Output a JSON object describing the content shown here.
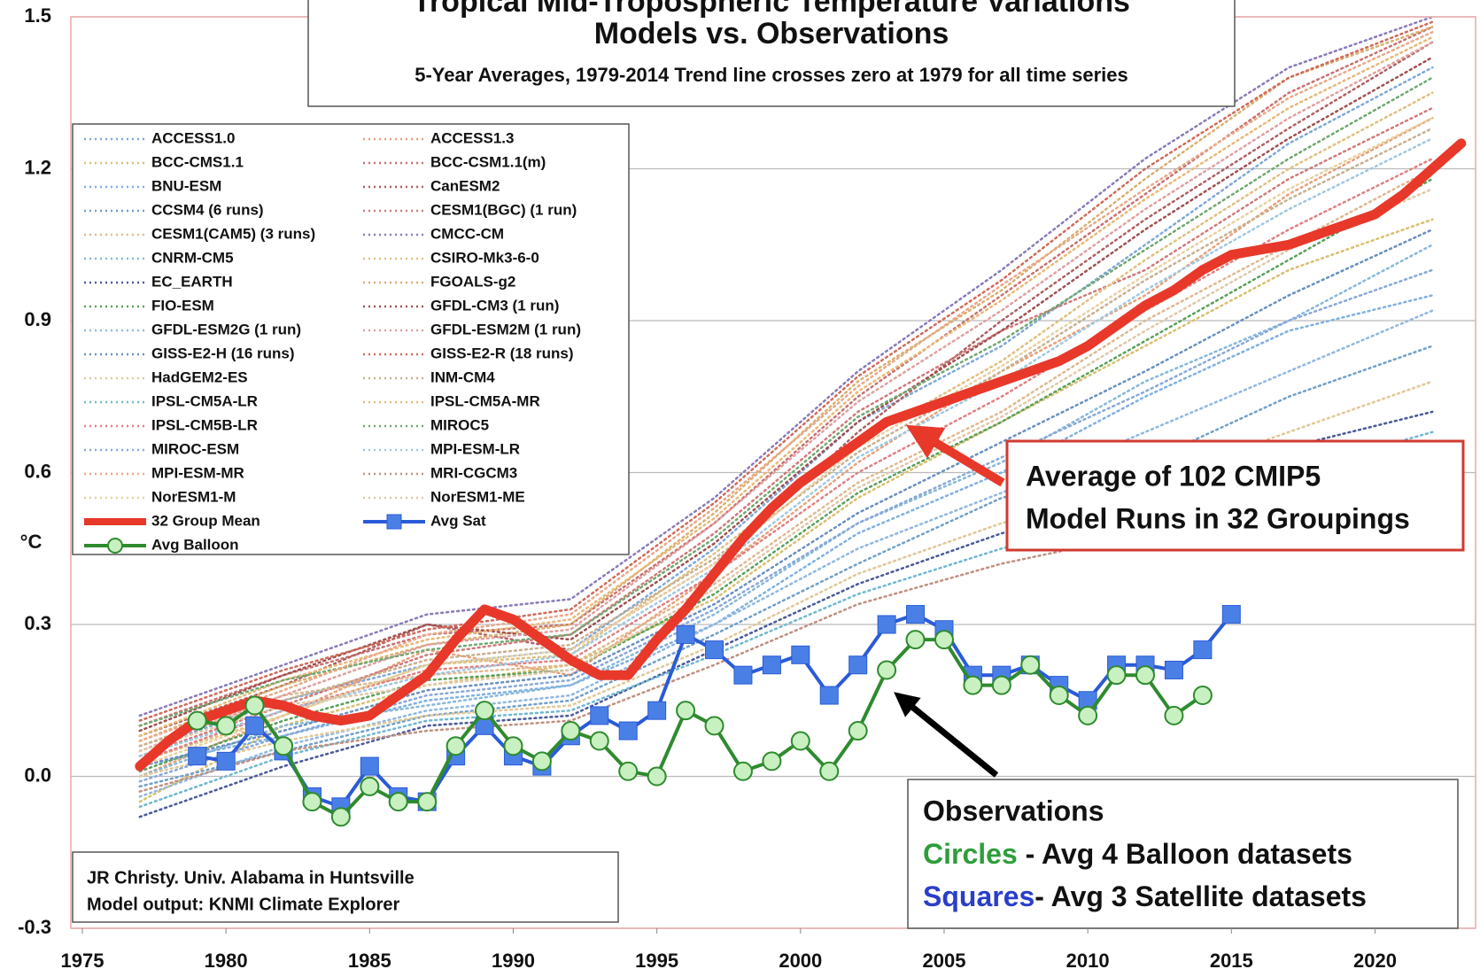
{
  "chart_data": {
    "type": "line",
    "title": "Tropical Mid-Tropospheric Temperature Variations",
    "subtitle": "Models vs. Observations",
    "note": "5-Year Averages, 1979-2014 Trend line crosses zero at 1979 for all time series",
    "y_label": "°C",
    "xlim": [
      1974.6,
      2023.5
    ],
    "ylim": [
      -0.3,
      1.5
    ],
    "xticks": [
      1975,
      1980,
      1985,
      1990,
      1995,
      2000,
      2005,
      2010,
      2015,
      2020
    ],
    "yticks": [
      -0.3,
      {
        "value": 0,
        "label": "0.0"
      },
      0.3,
      0.6,
      0.9,
      1.2,
      1.5
    ],
    "grid": true,
    "x": [
      1977,
      1978,
      1979,
      1980,
      1981,
      1982,
      1983,
      1984,
      1985,
      1986,
      1987,
      1988,
      1989,
      1990,
      1991,
      1992,
      1993,
      1994,
      1995,
      1996,
      1997,
      1998,
      1999,
      2000,
      2001,
      2002,
      2003,
      2004,
      2005,
      2006,
      2007,
      2008,
      2009,
      2010,
      2011,
      2012,
      2013,
      2014,
      2015,
      2016,
      2017,
      2018,
      2019,
      2020,
      2021,
      2022,
      2023
    ],
    "series": [
      {
        "name": "ACCESS1.0",
        "color": "#7fa8d8",
        "x": [
          1977,
          1982,
          1987,
          1992,
          1997,
          2002,
          2007,
          2012,
          2017,
          2022
        ],
        "values": [
          0.05,
          0.15,
          0.22,
          0.25,
          0.45,
          0.7,
          0.85,
          1.05,
          1.25,
          1.4
        ]
      },
      {
        "name": "ACCESS1.3",
        "color": "#e8a07a",
        "x": [
          1977,
          1982,
          1987,
          1992,
          1997,
          2002,
          2007,
          2012,
          2017,
          2022
        ],
        "values": [
          0.0,
          0.12,
          0.25,
          0.2,
          0.4,
          0.62,
          0.8,
          0.95,
          1.15,
          1.3
        ]
      },
      {
        "name": "BCC-CMS1.1",
        "color": "#d8c070",
        "x": [
          1977,
          1982,
          1987,
          1992,
          1997,
          2002,
          2007,
          2012,
          2017,
          2022
        ],
        "values": [
          -0.05,
          0.1,
          0.18,
          0.22,
          0.35,
          0.55,
          0.7,
          0.85,
          1.0,
          1.1
        ]
      },
      {
        "name": "BCC-CSM1.1(m)",
        "color": "#c87070",
        "x": [
          1977,
          1982,
          1987,
          1992,
          1997,
          2002,
          2007,
          2012,
          2017,
          2022
        ],
        "values": [
          0.1,
          0.2,
          0.28,
          0.3,
          0.5,
          0.75,
          0.95,
          1.15,
          1.35,
          1.48
        ]
      },
      {
        "name": "BNU-ESM",
        "color": "#80b0e0",
        "x": [
          1977,
          1982,
          1987,
          1992,
          1997,
          2002,
          2007,
          2012,
          2017,
          2022
        ],
        "values": [
          0.02,
          0.08,
          0.15,
          0.18,
          0.3,
          0.48,
          0.6,
          0.75,
          0.88,
          0.95
        ]
      },
      {
        "name": "CanESM2",
        "color": "#b06060",
        "x": [
          1977,
          1982,
          1987,
          1992,
          1997,
          2002,
          2007,
          2012,
          2017,
          2022
        ],
        "values": [
          0.08,
          0.18,
          0.3,
          0.25,
          0.42,
          0.68,
          0.9,
          1.1,
          1.28,
          1.45
        ]
      },
      {
        "name": "CCSM4 (6 runs)",
        "color": "#70a0c8",
        "x": [
          1977,
          1982,
          1987,
          1992,
          1997,
          2002,
          2007,
          2012,
          2017,
          2022
        ],
        "values": [
          -0.02,
          0.05,
          0.12,
          0.15,
          0.28,
          0.42,
          0.55,
          0.62,
          0.75,
          0.85
        ]
      },
      {
        "name": "CESM1(BGC) (1 run)",
        "color": "#d07a7a",
        "x": [
          1977,
          1982,
          1987,
          1992,
          1997,
          2002,
          2007,
          2012,
          2017,
          2022
        ],
        "values": [
          0.04,
          0.14,
          0.24,
          0.28,
          0.48,
          0.72,
          0.88,
          1.0,
          1.18,
          1.32
        ]
      },
      {
        "name": "CESM1(CAM5) (3 runs)",
        "color": "#e0b890",
        "x": [
          1977,
          1982,
          1987,
          1992,
          1997,
          2002,
          2007,
          2012,
          2017,
          2022
        ],
        "values": [
          0.06,
          0.16,
          0.2,
          0.22,
          0.38,
          0.58,
          0.72,
          0.9,
          1.05,
          1.2
        ]
      },
      {
        "name": "CMCC-CM",
        "color": "#8a7ab8",
        "x": [
          1977,
          1982,
          1987,
          1992,
          1997,
          2002,
          2007,
          2012,
          2017,
          2022
        ],
        "values": [
          0.12,
          0.22,
          0.32,
          0.35,
          0.55,
          0.8,
          1.0,
          1.22,
          1.4,
          1.5
        ]
      },
      {
        "name": "CNRM-CM5",
        "color": "#88b8d8",
        "x": [
          1977,
          1982,
          1987,
          1992,
          1997,
          2002,
          2007,
          2012,
          2017,
          2022
        ],
        "values": [
          0.0,
          0.1,
          0.14,
          0.18,
          0.32,
          0.5,
          0.62,
          0.78,
          0.9,
          1.05
        ]
      },
      {
        "name": "CSIRO-Mk3-6-0",
        "color": "#e0c080",
        "x": [
          1977,
          1982,
          1987,
          1992,
          1997,
          2002,
          2007,
          2012,
          2017,
          2022
        ],
        "values": [
          0.03,
          0.12,
          0.22,
          0.24,
          0.44,
          0.66,
          0.82,
          1.02,
          1.2,
          1.35
        ]
      },
      {
        "name": "EC_EARTH",
        "color": "#4a5a98",
        "x": [
          1977,
          1982,
          1987,
          1992,
          1997,
          2002,
          2007,
          2012,
          2017,
          2022
        ],
        "values": [
          -0.08,
          0.02,
          0.1,
          0.12,
          0.25,
          0.38,
          0.48,
          0.55,
          0.65,
          0.72
        ]
      },
      {
        "name": "FGOALS-g2",
        "color": "#d8b070",
        "x": [
          1977,
          1982,
          1987,
          1992,
          1997,
          2002,
          2007,
          2012,
          2017,
          2022
        ],
        "values": [
          0.07,
          0.18,
          0.26,
          0.3,
          0.52,
          0.78,
          0.96,
          1.18,
          1.38,
          1.48
        ]
      },
      {
        "name": "FIO-ESM",
        "color": "#5aa05a",
        "x": [
          1977,
          1982,
          1987,
          1992,
          1997,
          2002,
          2007,
          2012,
          2017,
          2022
        ],
        "values": [
          0.01,
          0.11,
          0.19,
          0.21,
          0.36,
          0.56,
          0.7,
          0.86,
          1.02,
          1.18
        ]
      },
      {
        "name": "GFDL-CM3 (1 run)",
        "color": "#a05050",
        "x": [
          1977,
          1982,
          1987,
          1992,
          1997,
          2002,
          2007,
          2012,
          2017,
          2022
        ],
        "values": [
          0.09,
          0.2,
          0.3,
          0.27,
          0.46,
          0.7,
          0.88,
          1.08,
          1.26,
          1.42
        ]
      },
      {
        "name": "GFDL-ESM2G (1 run)",
        "color": "#90b8e0",
        "x": [
          1977,
          1982,
          1987,
          1992,
          1997,
          2002,
          2007,
          2012,
          2017,
          2022
        ],
        "values": [
          -0.04,
          0.06,
          0.13,
          0.16,
          0.3,
          0.45,
          0.56,
          0.68,
          0.8,
          0.92
        ]
      },
      {
        "name": "GFDL-ESM2M (1 run)",
        "color": "#e0a0a0",
        "x": [
          1977,
          1982,
          1987,
          1992,
          1997,
          2002,
          2007,
          2012,
          2017,
          2022
        ],
        "values": [
          0.05,
          0.16,
          0.26,
          0.29,
          0.5,
          0.74,
          0.92,
          1.12,
          1.3,
          1.45
        ]
      },
      {
        "name": "GISS-E2-H (16 runs)",
        "color": "#6a90c0",
        "x": [
          1977,
          1982,
          1987,
          1992,
          1997,
          2002,
          2007,
          2012,
          2017,
          2022
        ],
        "values": [
          0.02,
          0.09,
          0.17,
          0.2,
          0.34,
          0.52,
          0.66,
          0.8,
          0.95,
          1.08
        ]
      },
      {
        "name": "GISS-E2-R (18 runs)",
        "color": "#d06a5a",
        "x": [
          1977,
          1982,
          1987,
          1992,
          1997,
          2002,
          2007,
          2012,
          2017,
          2022
        ],
        "values": [
          0.11,
          0.21,
          0.29,
          0.33,
          0.54,
          0.79,
          0.98,
          1.2,
          1.38,
          1.49
        ]
      },
      {
        "name": "HadGEM2-ES",
        "color": "#e0c898",
        "x": [
          1977,
          1982,
          1987,
          1992,
          1997,
          2002,
          2007,
          2012,
          2017,
          2022
        ],
        "values": [
          0.0,
          0.07,
          0.12,
          0.14,
          0.26,
          0.4,
          0.5,
          0.58,
          0.68,
          0.78
        ]
      },
      {
        "name": "INM-CM4",
        "color": "#c8b090",
        "x": [
          1977,
          1982,
          1987,
          1992,
          1997,
          2002,
          2007,
          2012,
          2017,
          2022
        ],
        "values": [
          0.06,
          0.15,
          0.23,
          0.26,
          0.43,
          0.64,
          0.8,
          0.98,
          1.14,
          1.28
        ]
      },
      {
        "name": "IPSL-CM5A-LR",
        "color": "#70b8d0",
        "x": [
          1977,
          1982,
          1987,
          1992,
          1997,
          2002,
          2007,
          2012,
          2017,
          2022
        ],
        "values": [
          -0.06,
          0.04,
          0.11,
          0.13,
          0.24,
          0.36,
          0.45,
          0.52,
          0.6,
          0.68
        ]
      },
      {
        "name": "IPSL-CM5A-MR",
        "color": "#e8b878",
        "x": [
          1977,
          1982,
          1987,
          1992,
          1997,
          2002,
          2007,
          2012,
          2017,
          2022
        ],
        "values": [
          0.08,
          0.19,
          0.27,
          0.31,
          0.51,
          0.76,
          0.94,
          1.14,
          1.32,
          1.46
        ]
      },
      {
        "name": "IPSL-CM5B-LR",
        "color": "#e08080",
        "x": [
          1977,
          1982,
          1987,
          1992,
          1997,
          2002,
          2007,
          2012,
          2017,
          2022
        ],
        "values": [
          0.03,
          0.13,
          0.21,
          0.23,
          0.4,
          0.6,
          0.75,
          0.92,
          1.08,
          1.22
        ]
      },
      {
        "name": "MIROC5",
        "color": "#70a870",
        "x": [
          1977,
          1982,
          1987,
          1992,
          1997,
          2002,
          2007,
          2012,
          2017,
          2022
        ],
        "values": [
          0.1,
          0.19,
          0.25,
          0.28,
          0.47,
          0.71,
          0.86,
          1.04,
          1.22,
          1.38
        ]
      },
      {
        "name": "MIROC-ESM",
        "color": "#88a8d8",
        "x": [
          1977,
          1982,
          1987,
          1992,
          1997,
          2002,
          2007,
          2012,
          2017,
          2022
        ],
        "values": [
          -0.01,
          0.08,
          0.16,
          0.19,
          0.33,
          0.5,
          0.63,
          0.76,
          0.9,
          1.0
        ]
      },
      {
        "name": "MPI-ESM-LR",
        "color": "#a0c8e0",
        "x": [
          1977,
          1982,
          1987,
          1992,
          1997,
          2002,
          2007,
          2012,
          2017,
          2022
        ],
        "values": [
          0.04,
          0.13,
          0.2,
          0.24,
          0.41,
          0.63,
          0.78,
          0.96,
          1.12,
          1.26
        ]
      },
      {
        "name": "MPI-ESM-MR",
        "color": "#e8a888",
        "x": [
          1977,
          1982,
          1987,
          1992,
          1997,
          2002,
          2007,
          2012,
          2017,
          2022
        ],
        "values": [
          0.07,
          0.17,
          0.28,
          0.32,
          0.53,
          0.77,
          0.97,
          1.16,
          1.34,
          1.47
        ]
      },
      {
        "name": "MRI-CGCM3",
        "color": "#c09080",
        "x": [
          1977,
          1982,
          1987,
          1992,
          1997,
          2002,
          2007,
          2012,
          2017,
          2022
        ],
        "values": [
          -0.03,
          0.05,
          0.09,
          0.11,
          0.22,
          0.34,
          0.42,
          0.48,
          0.55,
          0.62
        ]
      },
      {
        "name": "NorESM1-M",
        "color": "#e8d0a0",
        "x": [
          1977,
          1982,
          1987,
          1992,
          1997,
          2002,
          2007,
          2012,
          2017,
          2022
        ],
        "values": [
          0.02,
          0.12,
          0.22,
          0.25,
          0.42,
          0.65,
          0.81,
          0.99,
          1.16,
          1.3
        ]
      },
      {
        "name": "NorESM1-ME",
        "color": "#e0c8a8",
        "x": [
          1977,
          1982,
          1987,
          1992,
          1997,
          2002,
          2007,
          2012,
          2017,
          2022
        ],
        "values": [
          0.05,
          0.14,
          0.18,
          0.21,
          0.37,
          0.57,
          0.71,
          0.88,
          1.04,
          1.16
        ]
      },
      {
        "name": "32 Group Mean",
        "color": "#e8382a",
        "values": [
          0.02,
          0.07,
          0.11,
          0.13,
          0.15,
          0.14,
          0.12,
          0.11,
          0.12,
          0.16,
          0.2,
          0.27,
          0.33,
          0.31,
          0.27,
          0.23,
          0.2,
          0.2,
          0.27,
          0.33,
          0.4,
          0.47,
          0.53,
          0.58,
          0.62,
          0.66,
          0.7,
          0.72,
          0.74,
          0.76,
          0.78,
          0.8,
          0.82,
          0.85,
          0.89,
          0.93,
          0.96,
          1.0,
          1.03,
          1.04,
          1.05,
          1.07,
          1.09,
          1.11,
          1.15,
          1.2,
          1.25
        ]
      },
      {
        "name": "Avg Sat",
        "color": "#2a5bd7",
        "marker": "square",
        "values": [
          null,
          null,
          0.04,
          0.03,
          0.1,
          0.05,
          -0.04,
          -0.06,
          0.02,
          -0.04,
          -0.05,
          0.04,
          0.1,
          0.04,
          0.02,
          0.08,
          0.12,
          0.09,
          0.13,
          0.28,
          0.25,
          0.2,
          0.22,
          0.24,
          0.16,
          0.22,
          0.3,
          0.32,
          0.29,
          0.2,
          0.2,
          0.22,
          0.18,
          0.15,
          0.22,
          0.22,
          0.21,
          0.25,
          0.32,
          null,
          null,
          null,
          null,
          null,
          null,
          null,
          null
        ]
      },
      {
        "name": "Avg Balloon",
        "color": "#2e8b2e",
        "marker": "circle",
        "values": [
          null,
          null,
          0.11,
          0.1,
          0.14,
          0.06,
          -0.05,
          -0.08,
          -0.02,
          -0.05,
          -0.05,
          0.06,
          0.13,
          0.06,
          0.03,
          0.09,
          0.07,
          0.01,
          0.0,
          0.13,
          0.1,
          0.01,
          0.03,
          0.07,
          0.01,
          0.09,
          0.21,
          0.27,
          0.27,
          0.18,
          0.18,
          0.22,
          0.16,
          0.12,
          0.2,
          0.2,
          0.12,
          0.16,
          null,
          null,
          null,
          null,
          null,
          null,
          null,
          null,
          null
        ]
      }
    ],
    "mean_annotation": [
      "Average of 102 CMIP5",
      "Model Runs in 32 Groupings"
    ],
    "observations": {
      "title": "Observations",
      "lines": [
        {
          "key": "Circles",
          "text": " - Avg 4 Balloon datasets"
        },
        {
          "key": "Squares",
          "text": "- Avg 3 Satellite datasets"
        }
      ]
    },
    "credit": [
      "JR Christy. Univ. Alabama in Huntsville",
      "Model output: KNMI Climate Explorer"
    ]
  }
}
